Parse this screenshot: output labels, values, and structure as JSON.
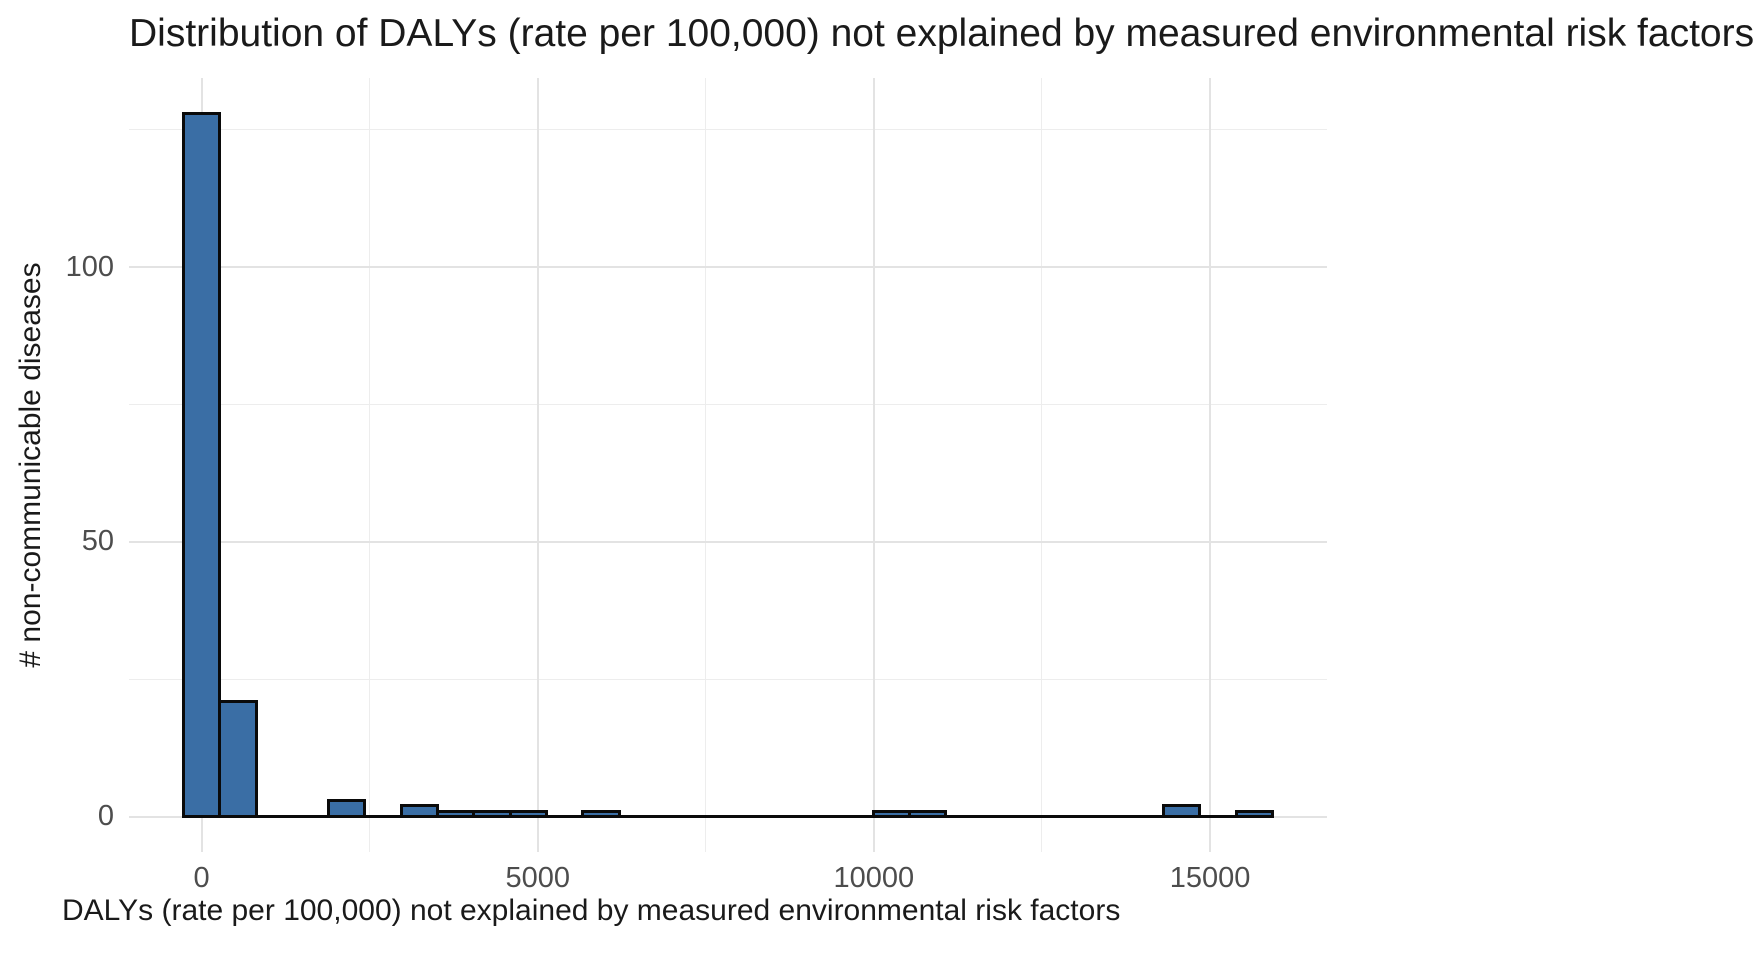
{
  "title": "Distribution of DALYs (rate per 100,000) not explained by measured environmental risk factors",
  "colors": {
    "bar_fill": "#3A6EA5",
    "bar_stroke": "#0a0a0a",
    "grid_major": "#e3e3e3",
    "grid_minor": "#ededed",
    "tick_label": "#4d4d4d",
    "text": "#1a1a1a",
    "background": "#ffffff"
  },
  "chart_data": {
    "type": "bar",
    "subtype": "histogram",
    "title": "Distribution of DALYs (rate per 100,000) not explained by measured environmental risk factors",
    "xlabel": "DALYs (rate per 100,000) not explained by measured environmental risk factors",
    "ylabel": "# non-communicable diseases",
    "bin_width": 540,
    "bins": [
      {
        "center": 0,
        "count": 128
      },
      {
        "center": 540,
        "count": 21
      },
      {
        "center": 1080,
        "count": 0
      },
      {
        "center": 1620,
        "count": 0
      },
      {
        "center": 2160,
        "count": 3
      },
      {
        "center": 2700,
        "count": 0
      },
      {
        "center": 3240,
        "count": 2
      },
      {
        "center": 3780,
        "count": 1
      },
      {
        "center": 4320,
        "count": 1
      },
      {
        "center": 4860,
        "count": 1
      },
      {
        "center": 5400,
        "count": 0
      },
      {
        "center": 5940,
        "count": 1
      },
      {
        "center": 6480,
        "count": 0
      },
      {
        "center": 7020,
        "count": 0
      },
      {
        "center": 7560,
        "count": 0
      },
      {
        "center": 8100,
        "count": 0
      },
      {
        "center": 8640,
        "count": 0
      },
      {
        "center": 9180,
        "count": 0
      },
      {
        "center": 9720,
        "count": 0
      },
      {
        "center": 10260,
        "count": 1
      },
      {
        "center": 10800,
        "count": 1
      },
      {
        "center": 11340,
        "count": 0
      },
      {
        "center": 11880,
        "count": 0
      },
      {
        "center": 12420,
        "count": 0
      },
      {
        "center": 12960,
        "count": 0
      },
      {
        "center": 13500,
        "count": 0
      },
      {
        "center": 14040,
        "count": 0
      },
      {
        "center": 14580,
        "count": 2
      },
      {
        "center": 15120,
        "count": 0
      },
      {
        "center": 15660,
        "count": 1
      }
    ],
    "x_domain": [
      -1080,
      16740
    ],
    "y_domain": [
      -6.4,
      134.4
    ],
    "x_major_ticks": [
      0,
      5000,
      10000,
      15000
    ],
    "x_minor_ticks": [
      2500,
      7500,
      12500
    ],
    "y_major_ticks": [
      0,
      50,
      100
    ],
    "y_minor_ticks": [
      25,
      75,
      125
    ],
    "x_tick_labels": [
      "0",
      "5000",
      "10000",
      "15000"
    ],
    "y_tick_labels": [
      "0",
      "50",
      "100"
    ],
    "grid": true,
    "legend": "none"
  }
}
